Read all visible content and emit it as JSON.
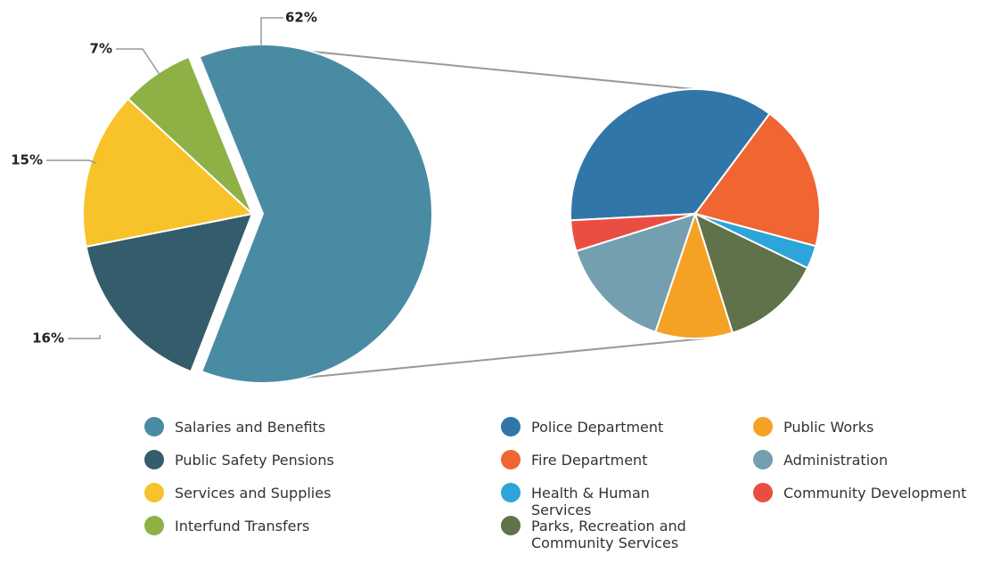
{
  "chart_data": [
    {
      "type": "pie",
      "categories": [
        "Salaries and Benefits",
        "Public Safety Pensions",
        "Services and Supplies",
        "Interfund Transfers"
      ],
      "values": [
        62,
        16,
        15,
        7
      ],
      "value_labels": [
        "62%",
        "16%",
        "15%",
        "7%"
      ],
      "colors": [
        "#4a8ba4",
        "#345c6a",
        "#f8c22a",
        "#8db144"
      ]
    },
    {
      "type": "pie",
      "categories": [
        "Police Department",
        "Fire Department",
        "Health & Human Services",
        "Parks, Recreation and Community Services",
        "Public Works",
        "Administration",
        "Community Development"
      ],
      "values": [
        36,
        19,
        3,
        13,
        10,
        15,
        4
      ],
      "colors": [
        "#3176a8",
        "#f06531",
        "#2ea5d8",
        "#5f724a",
        "#f4a124",
        "#739faf",
        "#ea4e43"
      ]
    }
  ]
}
